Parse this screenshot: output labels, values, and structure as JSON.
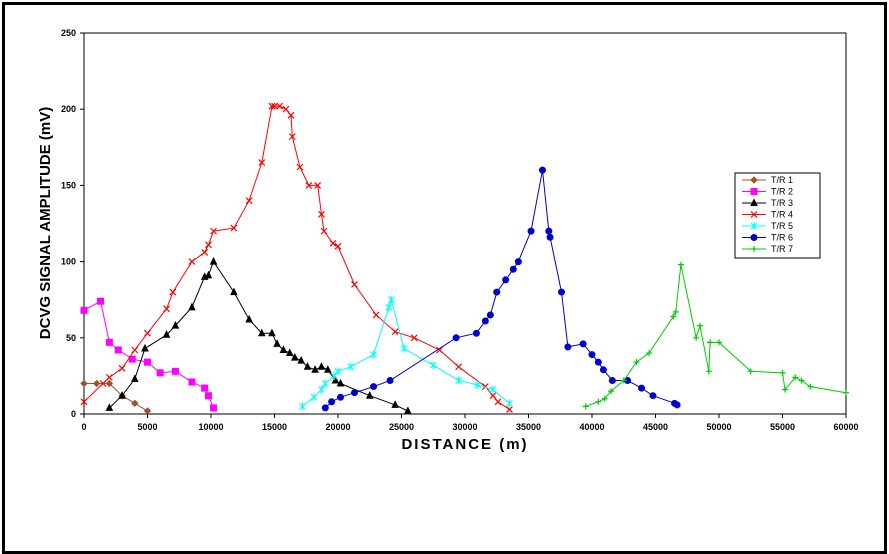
{
  "chart_data": {
    "type": "line",
    "title": "",
    "xlabel": "DISTANCE (m)",
    "ylabel": "DCVG SIGNAL AMPLITUDE (mV)",
    "xlim": [
      0,
      60000
    ],
    "ylim": [
      0,
      250
    ],
    "xticks": [
      0,
      5000,
      10000,
      15000,
      20000,
      25000,
      30000,
      35000,
      40000,
      45000,
      50000,
      55000,
      60000
    ],
    "yticks": [
      0,
      50,
      100,
      150,
      200,
      250
    ],
    "grid": false,
    "legend_position": "right",
    "series": [
      {
        "name": "T/R 1",
        "color": "#a0522d",
        "marker": "diamond",
        "x": [
          0,
          1000,
          2000,
          3000,
          4000,
          5000
        ],
        "y": [
          20,
          20,
          20,
          12,
          7,
          2
        ]
      },
      {
        "name": "T/R 2",
        "color": "#ff00ff",
        "marker": "square",
        "x": [
          0,
          1300,
          2000,
          2700,
          3800,
          5000,
          6000,
          7200,
          8500,
          9500,
          9800,
          10200
        ],
        "y": [
          68,
          74,
          47,
          42,
          36,
          34,
          27,
          28,
          21,
          17,
          12,
          4
        ]
      },
      {
        "name": "T/R 3",
        "color": "#000000",
        "marker": "triangle",
        "x": [
          2000,
          3000,
          4000,
          4800,
          6500,
          7200,
          8500,
          9500,
          9800,
          10200,
          11800,
          13000,
          14000,
          14800,
          15200,
          15700,
          16200,
          16600,
          17100,
          17600,
          18200,
          18700,
          19200,
          19800,
          20200,
          22500,
          24500,
          25500
        ],
        "y": [
          4,
          12,
          23,
          43,
          52,
          58,
          70,
          90,
          91,
          100,
          80,
          62,
          53,
          53,
          46,
          42,
          40,
          37,
          35,
          31,
          29,
          31,
          29,
          22,
          20,
          12,
          6,
          2
        ]
      },
      {
        "name": "T/R 4",
        "color": "#ff0000",
        "marker": "x",
        "x": [
          0,
          1500,
          2000,
          3000,
          4000,
          5000,
          6500,
          7000,
          8500,
          9500,
          9800,
          10200,
          11800,
          13000,
          14000,
          14800,
          15000,
          15400,
          15900,
          16300,
          16400,
          17000,
          17700,
          18400,
          18700,
          18900,
          19600,
          20000,
          21300,
          23000,
          24500,
          26000,
          28000,
          29500,
          31600,
          32200,
          32600,
          33500
        ],
        "y": [
          8,
          20,
          24,
          30,
          42,
          53,
          69,
          80,
          100,
          106,
          111,
          120,
          122,
          140,
          165,
          202,
          202,
          202,
          200,
          196,
          182,
          162,
          150,
          150,
          131,
          120,
          112,
          110,
          85,
          65,
          54,
          50,
          42,
          31,
          18,
          12,
          8,
          3
        ]
      },
      {
        "name": "T/R 5",
        "color": "#00ffff",
        "marker": "star",
        "x": [
          17200,
          18100,
          18700,
          19000,
          19700,
          20000,
          21000,
          22800,
          24000,
          24200,
          25200,
          27500,
          29500,
          31000,
          32200,
          33500
        ],
        "y": [
          5,
          11,
          16,
          20,
          25,
          28,
          31,
          39,
          70,
          75,
          43,
          32,
          22,
          19,
          16,
          7
        ]
      },
      {
        "name": "T/R 6",
        "color": "#0000cc",
        "marker": "circle",
        "x": [
          19000,
          19500,
          20200,
          21300,
          22800,
          24100,
          29300,
          30900,
          31600,
          32000,
          32500,
          33200,
          33800,
          34200,
          35200,
          36100,
          36600,
          36700,
          37600,
          38100,
          39300,
          40000,
          40500,
          40900,
          41600,
          42800,
          43900,
          44800,
          46500,
          46700
        ],
        "y": [
          4,
          8,
          11,
          14,
          18,
          22,
          50,
          53,
          61,
          65,
          80,
          88,
          95,
          100,
          120,
          160,
          120,
          116,
          80,
          44,
          46,
          39,
          34,
          29,
          22,
          22,
          17,
          12,
          7,
          6
        ]
      },
      {
        "name": "T/R 7",
        "color": "#00cc00",
        "marker": "plus",
        "x": [
          39500,
          40500,
          41000,
          41500,
          42500,
          43500,
          44500,
          46400,
          46600,
          47000,
          48200,
          48500,
          49200,
          49300,
          50000,
          52500,
          55000,
          55200,
          56000,
          56500,
          57200,
          60000
        ],
        "y": [
          5,
          8,
          10,
          15,
          22,
          34,
          40,
          64,
          67,
          98,
          50,
          58,
          28,
          47,
          47,
          28,
          27,
          16,
          24,
          22,
          18,
          14
        ]
      }
    ]
  }
}
